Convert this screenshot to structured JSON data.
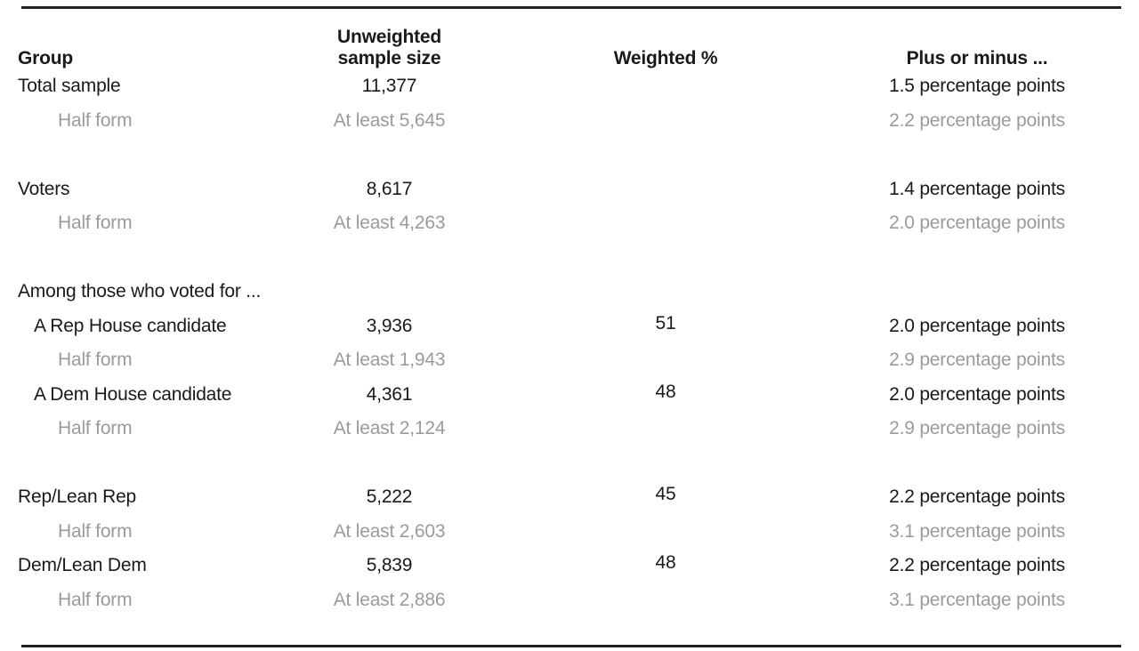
{
  "colors": {
    "text": "#1a1a1a",
    "muted_text": "#9b9b9b",
    "rule": "#222222"
  },
  "chart_data": {
    "type": "table",
    "title": "",
    "legend": "none",
    "grid": "off",
    "columns": [
      "Group",
      "Unweighted sample size",
      "Weighted %",
      "Plus or minus ..."
    ],
    "header": {
      "group": "Group",
      "sample_line1": "Unweighted",
      "sample_line2": "sample size",
      "weighted": "Weighted %",
      "moe": "Plus or minus ..."
    },
    "rows": [
      {
        "group": "Total sample",
        "sample": "11,377",
        "weighted": "",
        "moe": "1.5 percentage points",
        "muted": false,
        "indent": 0
      },
      {
        "group": "Half form",
        "sample": "At least 5,645",
        "weighted": "",
        "moe": "2.2 percentage points",
        "muted": true,
        "indent": 2
      },
      {
        "group": "Voters",
        "sample": "8,617",
        "weighted": "",
        "moe": "1.4 percentage points",
        "muted": false,
        "indent": 0
      },
      {
        "group": "Half form",
        "sample": "At least 4,263",
        "weighted": "",
        "moe": "2.0 percentage points",
        "muted": true,
        "indent": 2
      },
      {
        "group": "Among those who voted for ...",
        "sample": "",
        "weighted": "",
        "moe": "",
        "muted": false,
        "indent": 0,
        "section": true
      },
      {
        "group": "A Rep House candidate",
        "sample": "3,936",
        "weighted": "51",
        "moe": "2.0 percentage points",
        "muted": false,
        "indent": 1
      },
      {
        "group": "Half form",
        "sample": "At least 1,943",
        "weighted": "",
        "moe": "2.9 percentage points",
        "muted": true,
        "indent": 2
      },
      {
        "group": "A Dem House candidate",
        "sample": "4,361",
        "weighted": "48",
        "moe": "2.0 percentage points",
        "muted": false,
        "indent": 1
      },
      {
        "group": "Half form",
        "sample": "At least 2,124",
        "weighted": "",
        "moe": "2.9 percentage points",
        "muted": true,
        "indent": 2
      },
      {
        "group": "Rep/Lean Rep",
        "sample": "5,222",
        "weighted": "45",
        "moe": "2.2 percentage points",
        "muted": false,
        "indent": 0
      },
      {
        "group": "Half form",
        "sample": "At least 2,603",
        "weighted": "",
        "moe": "3.1 percentage points",
        "muted": true,
        "indent": 2
      },
      {
        "group": "Dem/Lean Dem",
        "sample": "5,839",
        "weighted": "48",
        "moe": "2.2 percentage points",
        "muted": false,
        "indent": 0
      },
      {
        "group": "Half form",
        "sample": "At least 2,886",
        "weighted": "",
        "moe": "3.1 percentage points",
        "muted": true,
        "indent": 2
      }
    ]
  }
}
